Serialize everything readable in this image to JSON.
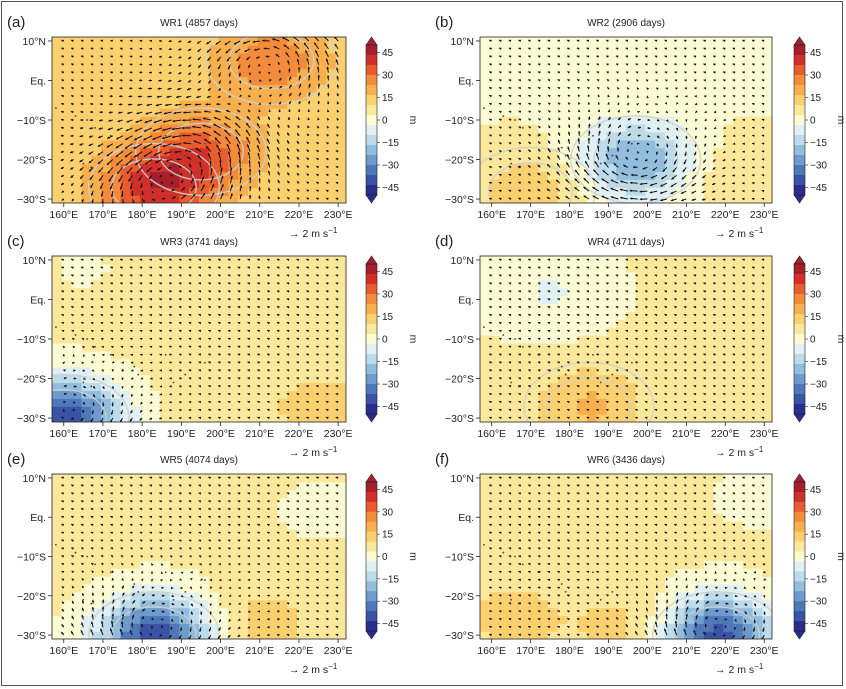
{
  "colorbar": {
    "unit": "m",
    "tick_labels": [
      "45",
      "30",
      "15",
      "0",
      "−15",
      "−30",
      "−45"
    ],
    "ticks": [
      45,
      30,
      15,
      0,
      -15,
      -30,
      -45
    ],
    "range": [
      -50,
      50
    ],
    "colors": [
      "#2a2d8f",
      "#3a53a4",
      "#4e78b9",
      "#6c9bcc",
      "#93bddc",
      "#bcdbeb",
      "#e0f0f3",
      "#fbfbd4",
      "#fbe89a",
      "#fbd06e",
      "#f8b04f",
      "#f38b3c",
      "#e85c2e",
      "#d1302a",
      "#a71f2b"
    ]
  },
  "vector_key": {
    "arrow": "→",
    "label": "2 m s",
    "exponent": "−1"
  },
  "chart_data": [
    {
      "type": "heatmap",
      "panel": "(a)",
      "title": "WR1 (4857 days)",
      "x_ticks": [
        "160°E",
        "170°E",
        "180°E",
        "190°E",
        "200°E",
        "210°E",
        "220°E",
        "230°E"
      ],
      "x_values": [
        160,
        170,
        180,
        190,
        200,
        210,
        220,
        230
      ],
      "y_ticks": [
        "10°N",
        "Eq.",
        "−10°S",
        "−20°S",
        "−30°S"
      ],
      "y_values": [
        10,
        0,
        -10,
        -20,
        -30
      ],
      "xlim": [
        157,
        232
      ],
      "ylim": [
        -31,
        11
      ],
      "anomaly_centers": [
        {
          "lon": 213,
          "lat": 5,
          "value": 16
        },
        {
          "lon": 183,
          "lat": -27,
          "value": 27
        },
        {
          "lon": 195,
          "lat": -18,
          "value": 20
        }
      ],
      "background_value": 12
    },
    {
      "type": "heatmap",
      "panel": "(b)",
      "title": "WR2 (2906 days)",
      "x_ticks": [
        "160°E",
        "170°E",
        "180°E",
        "190°E",
        "200°E",
        "210°E",
        "220°E",
        "230°E"
      ],
      "x_values": [
        160,
        170,
        180,
        190,
        200,
        210,
        220,
        230
      ],
      "y_ticks": [
        "10°N",
        "Eq.",
        "−10°S",
        "−20°S",
        "−30°S"
      ],
      "y_values": [
        10,
        0,
        -10,
        -20,
        -30
      ],
      "xlim": [
        157,
        232
      ],
      "ylim": [
        -31,
        11
      ],
      "anomaly_centers": [
        {
          "lon": 197,
          "lat": -20,
          "value": -26
        },
        {
          "lon": 170,
          "lat": -28,
          "value": 12
        },
        {
          "lon": 225,
          "lat": -25,
          "value": 7
        }
      ],
      "background_value": 3
    },
    {
      "type": "heatmap",
      "panel": "(c)",
      "title": "WR3 (3741 days)",
      "x_ticks": [
        "160°E",
        "170°E",
        "180°E",
        "190°E",
        "200°E",
        "210°E",
        "220°E",
        "230°E"
      ],
      "x_values": [
        160,
        170,
        180,
        190,
        200,
        210,
        220,
        230
      ],
      "y_ticks": [
        "10°N",
        "Eq.",
        "−10°S",
        "−20°S",
        "−30°S"
      ],
      "y_values": [
        10,
        0,
        -10,
        -20,
        -30
      ],
      "xlim": [
        157,
        232
      ],
      "ylim": [
        -31,
        11
      ],
      "anomaly_centers": [
        {
          "lon": 160,
          "lat": -30,
          "value": -48
        },
        {
          "lon": 225,
          "lat": -27,
          "value": 8
        },
        {
          "lon": 165,
          "lat": 8,
          "value": -2
        }
      ],
      "background_value": 5
    },
    {
      "type": "heatmap",
      "panel": "(d)",
      "title": "WR4 (4711 days)",
      "x_ticks": [
        "160°E",
        "170°E",
        "180°E",
        "190°E",
        "200°E",
        "210°E",
        "220°E",
        "230°E"
      ],
      "x_values": [
        160,
        170,
        180,
        190,
        200,
        210,
        220,
        230
      ],
      "y_ticks": [
        "10°N",
        "Eq.",
        "−10°S",
        "−20°S",
        "−30°S"
      ],
      "y_values": [
        10,
        0,
        -10,
        -20,
        -30
      ],
      "xlim": [
        157,
        232
      ],
      "ylim": [
        -31,
        11
      ],
      "anomaly_centers": [
        {
          "lon": 175,
          "lat": 2,
          "value": -8
        },
        {
          "lon": 185,
          "lat": -27,
          "value": 14
        }
      ],
      "background_value": 4
    },
    {
      "type": "heatmap",
      "panel": "(e)",
      "title": "WR5 (4074 days)",
      "x_ticks": [
        "160°E",
        "170°E",
        "180°E",
        "190°E",
        "200°E",
        "210°E",
        "220°E",
        "230°E"
      ],
      "x_values": [
        160,
        170,
        180,
        190,
        200,
        210,
        220,
        230
      ],
      "y_ticks": [
        "10°N",
        "Eq.",
        "−10°S",
        "−20°S",
        "−30°S"
      ],
      "y_values": [
        10,
        0,
        -10,
        -20,
        -30
      ],
      "xlim": [
        157,
        232
      ],
      "ylim": [
        -31,
        11
      ],
      "anomaly_centers": [
        {
          "lon": 183,
          "lat": -30,
          "value": -46
        },
        {
          "lon": 225,
          "lat": 2,
          "value": -3
        },
        {
          "lon": 210,
          "lat": -27,
          "value": 8
        }
      ],
      "background_value": 5
    },
    {
      "type": "heatmap",
      "panel": "(f)",
      "title": "WR6 (3436 days)",
      "x_ticks": [
        "160°E",
        "170°E",
        "180°E",
        "190°E",
        "200°E",
        "210°E",
        "220°E",
        "230°E"
      ],
      "x_values": [
        160,
        170,
        180,
        190,
        200,
        210,
        220,
        230
      ],
      "y_ticks": [
        "10°N",
        "Eq.",
        "−10°S",
        "−20°S",
        "−30°S"
      ],
      "y_values": [
        10,
        0,
        -10,
        -20,
        -30
      ],
      "xlim": [
        157,
        232
      ],
      "ylim": [
        -31,
        11
      ],
      "anomaly_centers": [
        {
          "lon": 218,
          "lat": -30,
          "value": -45
        },
        {
          "lon": 228,
          "lat": 5,
          "value": -3
        },
        {
          "lon": 165,
          "lat": -25,
          "value": 8
        },
        {
          "lon": 195,
          "lat": -28,
          "value": 8
        }
      ],
      "background_value": 5
    }
  ]
}
